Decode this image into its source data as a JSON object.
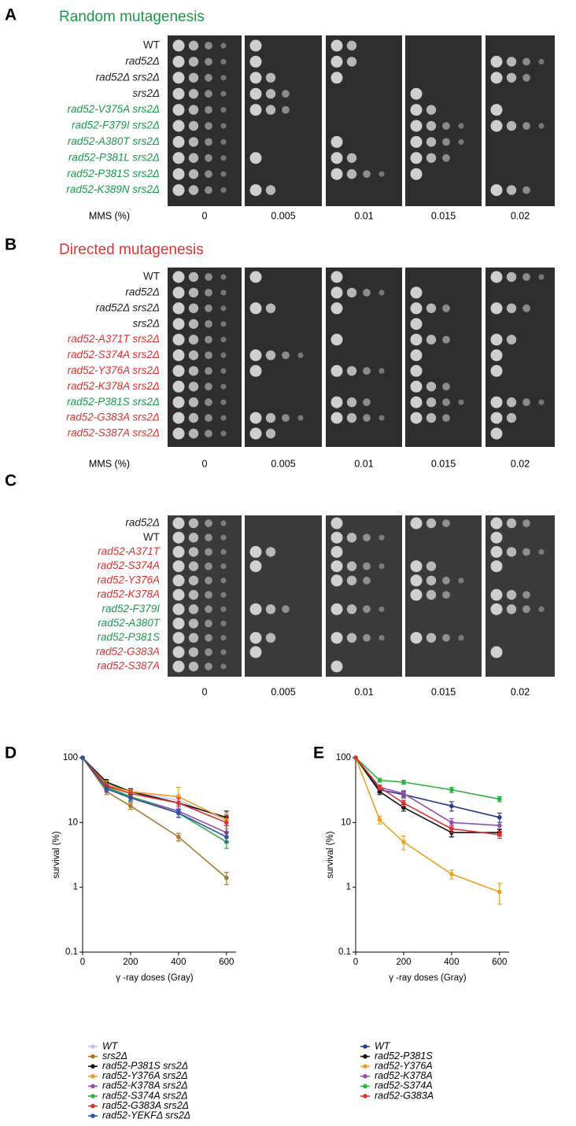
{
  "panels": [
    {
      "letter": "A",
      "title": "Random mutagenesis",
      "title_color": "#1a9a4a",
      "axis_label": "MMS (%)",
      "strains": [
        {
          "name": "WT",
          "color": "#222222",
          "upright": true
        },
        {
          "name": "rad52Δ",
          "color": "#222222"
        },
        {
          "name": "rad52Δ srs2Δ",
          "color": "#222222"
        },
        {
          "name": "srs2Δ",
          "color": "#222222"
        },
        {
          "name": "rad52-V375A srs2Δ",
          "color": "#1a9a4a"
        },
        {
          "name": "rad52-F379I srs2Δ",
          "color": "#1a9a4a"
        },
        {
          "name": "rad52-A380T srs2Δ",
          "color": "#1a9a4a"
        },
        {
          "name": "rad52-P381L srs2Δ",
          "color": "#1a9a4a"
        },
        {
          "name": "rad52-P381S srs2Δ",
          "color": "#1a9a4a"
        },
        {
          "name": "rad52-K389N srs2Δ",
          "color": "#1a9a4a"
        }
      ],
      "concentrations": [
        "0",
        "0.005",
        "0.01",
        "0.015",
        "0.02"
      ]
    },
    {
      "letter": "B",
      "title": "Directed mutagenesis",
      "title_color": "#e03030",
      "axis_label": "MMS (%)",
      "strains": [
        {
          "name": "WT",
          "color": "#222222",
          "upright": true
        },
        {
          "name": "rad52Δ",
          "color": "#222222"
        },
        {
          "name": "rad52Δ srs2Δ",
          "color": "#222222"
        },
        {
          "name": "srs2Δ",
          "color": "#222222"
        },
        {
          "name": "rad52-A371T srs2Δ",
          "color": "#e03030"
        },
        {
          "name": "rad52-S374A srs2Δ",
          "color": "#e03030"
        },
        {
          "name": "rad52-Y376A srs2Δ",
          "color": "#e03030"
        },
        {
          "name": "rad52-K378A srs2Δ",
          "color": "#e03030"
        },
        {
          "name": "rad52-P381S srs2Δ",
          "color": "#1a9a4a"
        },
        {
          "name": "rad52-G383A srs2Δ",
          "color": "#e03030"
        },
        {
          "name": "rad52-S387A srs2Δ",
          "color": "#e03030"
        }
      ],
      "concentrations": [
        "0",
        "0.005",
        "0.01",
        "0.015",
        "0.02"
      ]
    },
    {
      "letter": "C",
      "strains": [
        {
          "name": "rad52Δ",
          "color": "#222222"
        },
        {
          "name": "WT",
          "color": "#222222",
          "upright": true
        },
        {
          "name": "rad52-A371T",
          "color": "#e03030"
        },
        {
          "name": "rad52-S374A",
          "color": "#e03030"
        },
        {
          "name": "rad52-Y376A",
          "color": "#e03030"
        },
        {
          "name": "rad52-K378A",
          "color": "#e03030"
        },
        {
          "name": "rad52-F379I",
          "color": "#1a9a4a"
        },
        {
          "name": "rad52-A380T",
          "color": "#1a9a4a"
        },
        {
          "name": "rad52-P381S",
          "color": "#1a9a4a"
        },
        {
          "name": "rad52-G383A",
          "color": "#e03030"
        },
        {
          "name": "rad52-S387A",
          "color": "#e03030"
        }
      ],
      "concentrations": [
        "0",
        "0.005",
        "0.01",
        "0.015",
        "0.02"
      ]
    }
  ],
  "chart_data": [
    {
      "type": "line",
      "letter": "D",
      "xlabel": "γ -ray doses (Gray)",
      "ylabel": "survival (%)",
      "x": [
        0,
        100,
        200,
        400,
        600
      ],
      "xlim": [
        0,
        640
      ],
      "xticks": [
        0,
        200,
        400,
        600
      ],
      "ylim": [
        0.1,
        100
      ],
      "yticks": [
        0.1,
        1,
        10,
        100
      ],
      "log_y": true,
      "series": [
        {
          "name": "WT",
          "color": "#c4c4ea",
          "values": [
            100,
            40,
            30,
            22,
            11
          ],
          "errors": [
            0,
            4,
            3,
            5,
            2
          ]
        },
        {
          "name": "srs2Δ",
          "color": "#a87a30",
          "values": [
            100,
            30,
            18,
            6,
            1.4
          ],
          "errors": [
            0,
            3,
            2,
            0.8,
            0.3
          ]
        },
        {
          "name": "rad52-P381S srs2Δ",
          "color": "#111111",
          "values": [
            100,
            42,
            30,
            20,
            12
          ],
          "errors": [
            0,
            4,
            3,
            4,
            3
          ]
        },
        {
          "name": "rad52-Y376A srs2Δ",
          "color": "#f0a020",
          "values": [
            100,
            38,
            30,
            25,
            11
          ],
          "errors": [
            0,
            6,
            4,
            10,
            3
          ]
        },
        {
          "name": "rad52-K378A srs2Δ",
          "color": "#9050b0",
          "values": [
            100,
            35,
            25,
            15,
            7
          ],
          "errors": [
            0,
            3,
            3,
            3,
            2
          ]
        },
        {
          "name": "rad52-S374A srs2Δ",
          "color": "#30b040",
          "values": [
            100,
            36,
            25,
            14,
            5
          ],
          "errors": [
            0,
            3,
            3,
            2,
            1
          ]
        },
        {
          "name": "rad52-G383A srs2Δ",
          "color": "#e03030",
          "values": [
            100,
            37,
            28,
            20,
            10
          ],
          "errors": [
            0,
            3,
            3,
            4,
            3
          ]
        },
        {
          "name": "rad52-YEKFΔ srs2Δ",
          "color": "#3050a0",
          "values": [
            100,
            33,
            24,
            14,
            6
          ],
          "errors": [
            0,
            3,
            3,
            2,
            1
          ]
        }
      ]
    },
    {
      "type": "line",
      "letter": "E",
      "xlabel": "γ -ray doses (Gray)",
      "ylabel": "survival (%)",
      "x": [
        0,
        100,
        200,
        400,
        600
      ],
      "xlim": [
        0,
        640
      ],
      "xticks": [
        0,
        200,
        400,
        600
      ],
      "ylim": [
        0.1,
        100
      ],
      "yticks": [
        0.1,
        1,
        10,
        100
      ],
      "log_y": true,
      "series": [
        {
          "name": "WT",
          "color": "#2a3a8a",
          "values": [
            100,
            32,
            27,
            18,
            12
          ],
          "errors": [
            0,
            3,
            3,
            3,
            2
          ]
        },
        {
          "name": "rad52-P381S",
          "color": "#111111",
          "values": [
            100,
            30,
            17,
            7,
            7
          ],
          "errors": [
            0,
            3,
            2,
            1,
            0.8
          ]
        },
        {
          "name": "rad52-Y376A",
          "color": "#f0a020",
          "values": [
            100,
            11,
            5,
            1.6,
            0.85
          ],
          "errors": [
            0,
            1.5,
            1.2,
            0.25,
            0.3
          ]
        },
        {
          "name": "rad52-K378A",
          "color": "#9050b0",
          "values": [
            100,
            35,
            28,
            10,
            9
          ],
          "errors": [
            0,
            3,
            3,
            1.5,
            1
          ]
        },
        {
          "name": "rad52-S374A",
          "color": "#30b040",
          "values": [
            100,
            45,
            42,
            32,
            23
          ],
          "errors": [
            0,
            3,
            3,
            3,
            2
          ]
        },
        {
          "name": "rad52-G383A",
          "color": "#e03030",
          "values": [
            100,
            35,
            20,
            8,
            6.5
          ],
          "errors": [
            0,
            3,
            2,
            1,
            0.8
          ]
        }
      ]
    }
  ]
}
